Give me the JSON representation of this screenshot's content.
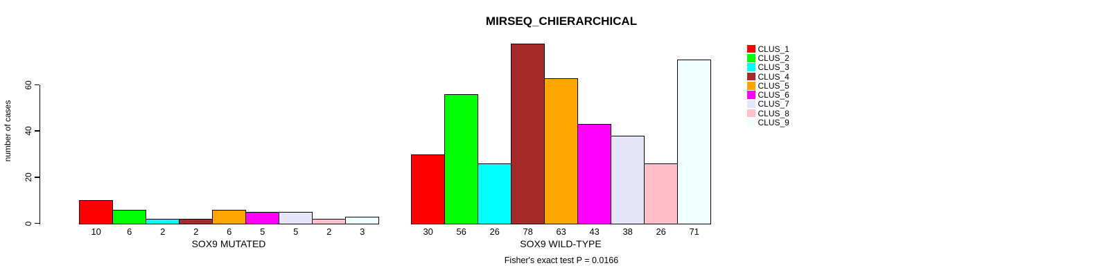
{
  "chart_data": {
    "type": "bar",
    "title": "MIRSEQ_CHIERARCHICAL",
    "ylabel": "number of cases",
    "xlabel": "",
    "ylim": [
      0,
      60
    ],
    "yticks": [
      0,
      20,
      40,
      60
    ],
    "grid": false,
    "legend_position": "right",
    "categories": [
      "SOX9 MUTATED",
      "SOX9 WILD-TYPE"
    ],
    "series": [
      {
        "name": "CLUS_1",
        "color": "#ff0000",
        "values": [
          10,
          30
        ]
      },
      {
        "name": "CLUS_2",
        "color": "#00ff00",
        "values": [
          6,
          56
        ]
      },
      {
        "name": "CLUS_3",
        "color": "#00ffff",
        "values": [
          2,
          26
        ]
      },
      {
        "name": "CLUS_4",
        "color": "#a52a2a",
        "values": [
          2,
          78
        ]
      },
      {
        "name": "CLUS_5",
        "color": "#ffa500",
        "values": [
          6,
          63
        ]
      },
      {
        "name": "CLUS_6",
        "color": "#ff00ff",
        "values": [
          5,
          43
        ]
      },
      {
        "name": "CLUS_7",
        "color": "#e6e6fa",
        "values": [
          5,
          38
        ]
      },
      {
        "name": "CLUS_8",
        "color": "#ffc0cb",
        "values": [
          2,
          26
        ]
      },
      {
        "name": "CLUS_9",
        "color": "#f0ffff",
        "values": [
          3,
          71
        ]
      }
    ],
    "bar_value_labels_shown": true,
    "annotation": "Fisher's exact test P = 0.0166"
  }
}
